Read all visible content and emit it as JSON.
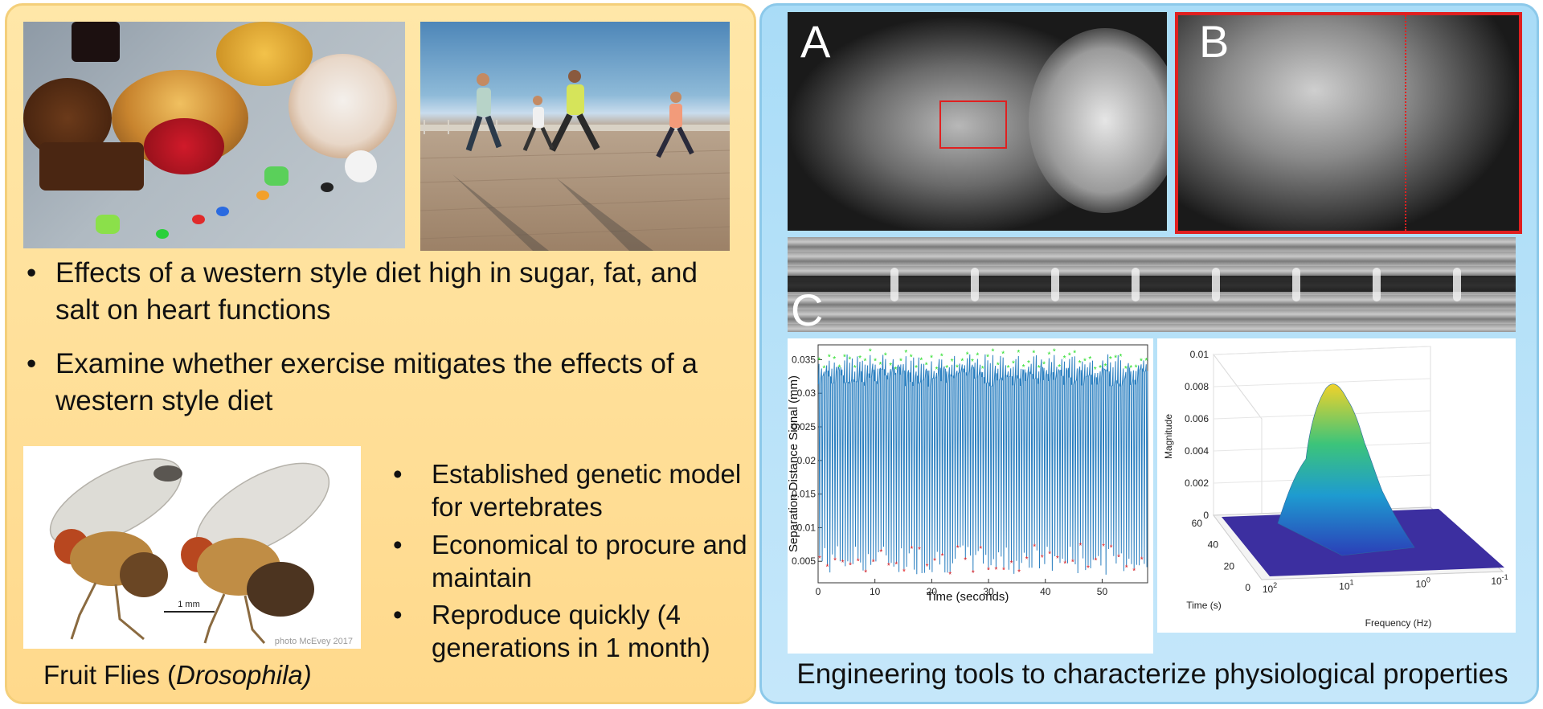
{
  "left": {
    "bullets": [
      "Effects of a western style diet high in sugar, fat, and salt on heart functions",
      "Examine whether exercise mitigates the effects of a western style diet"
    ],
    "fly_bullets": [
      "Established genetic model for vertebrates",
      "Economical to procure and maintain",
      "Reproduce quickly (4 generations in 1 month)"
    ],
    "fly_photo": {
      "scale_label": "1 mm",
      "credit": "photo McEvey 2017"
    },
    "fly_caption": {
      "prefix": "Fruit Flies (",
      "italic": "Drosophila)"
    }
  },
  "right": {
    "labels": {
      "a": "A",
      "b": "B",
      "c": "C"
    },
    "caption": "Engineering tools to characterize physiological properties"
  },
  "colors": {
    "roi": "#e02020",
    "signal": "#2a7fc0",
    "peaks": "#22dd22",
    "troughs": "#ee2222"
  },
  "chart_data": [
    {
      "type": "line",
      "xlabel": "Time (seconds)",
      "ylabel": "Separation Distance Signal (mm)",
      "xlim": [
        0,
        58
      ],
      "ylim": [
        0.0018,
        0.0372
      ],
      "xticks": [
        0,
        10,
        20,
        30,
        40,
        50
      ],
      "yticks": [
        0.005,
        0.01,
        0.015,
        0.02,
        0.025,
        0.03,
        0.035
      ],
      "ytick_labels": [
        "0.005",
        "0.01",
        "0.015",
        "0.02",
        "0.025",
        "0.03",
        "0.035"
      ],
      "series": [
        {
          "kind": "oscillation",
          "period": 0.45,
          "peak_level": 0.0345,
          "trough_level": 0.0055
        },
        {
          "kind": "peaks-markers",
          "level": 0.0352
        },
        {
          "kind": "troughs-markers",
          "level": 0.0055
        }
      ]
    },
    {
      "type": "surface",
      "xlabel": "Frequency (Hz)",
      "ylabel": "Time (s)",
      "zlabel": "Magnitude",
      "zticks": [
        "0",
        "0.002",
        "0.004",
        "0.006",
        "0.008",
        "0.01"
      ],
      "yticks": [
        "0",
        "20",
        "40",
        "60"
      ],
      "xticks": [
        "10^2",
        "10^1",
        "10^0",
        "10^-1"
      ],
      "peak_magnitude": 0.0082
    }
  ]
}
